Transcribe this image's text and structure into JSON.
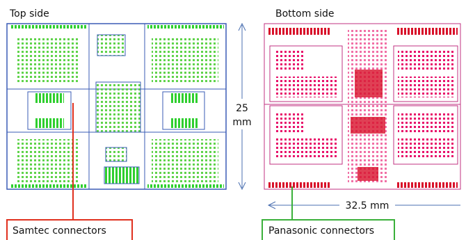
{
  "panels": [
    {
      "title": "Top side"
    },
    {
      "title": "Bottom side"
    }
  ],
  "dimensions": {
    "height_value": "25",
    "height_unit": "mm",
    "width": "32.5 mm"
  },
  "callouts": [
    {
      "label": "Samtec connectors"
    },
    {
      "label": "Panasonic connectors"
    }
  ]
}
